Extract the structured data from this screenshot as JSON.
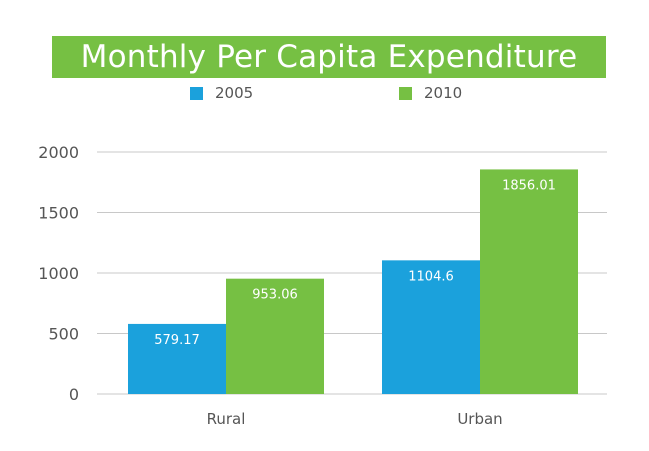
{
  "colors": {
    "series_2005": "#1ba1dc",
    "series_2010": "#76c043",
    "grid": "#c8c8c8",
    "text": "#555555"
  },
  "chart_data": {
    "type": "bar",
    "title": "Monthly Per Capita Expenditure",
    "categories": [
      "Rural",
      "Urban"
    ],
    "series": [
      {
        "name": "2005",
        "values": [
          579.17,
          1104.6
        ]
      },
      {
        "name": "2010",
        "values": [
          953.06,
          1856.01
        ]
      }
    ],
    "data_labels": [
      [
        "579.17",
        "1104.6"
      ],
      [
        "953.06",
        "1856.01"
      ]
    ],
    "yticks": [
      "0",
      "500",
      "1000",
      "1500",
      "2000"
    ],
    "ytick_values": [
      0,
      500,
      1000,
      1500,
      2000
    ],
    "ylim": [
      0,
      2000
    ],
    "xlabel": "",
    "ylabel": "",
    "grid": true,
    "legend_position": "top"
  }
}
